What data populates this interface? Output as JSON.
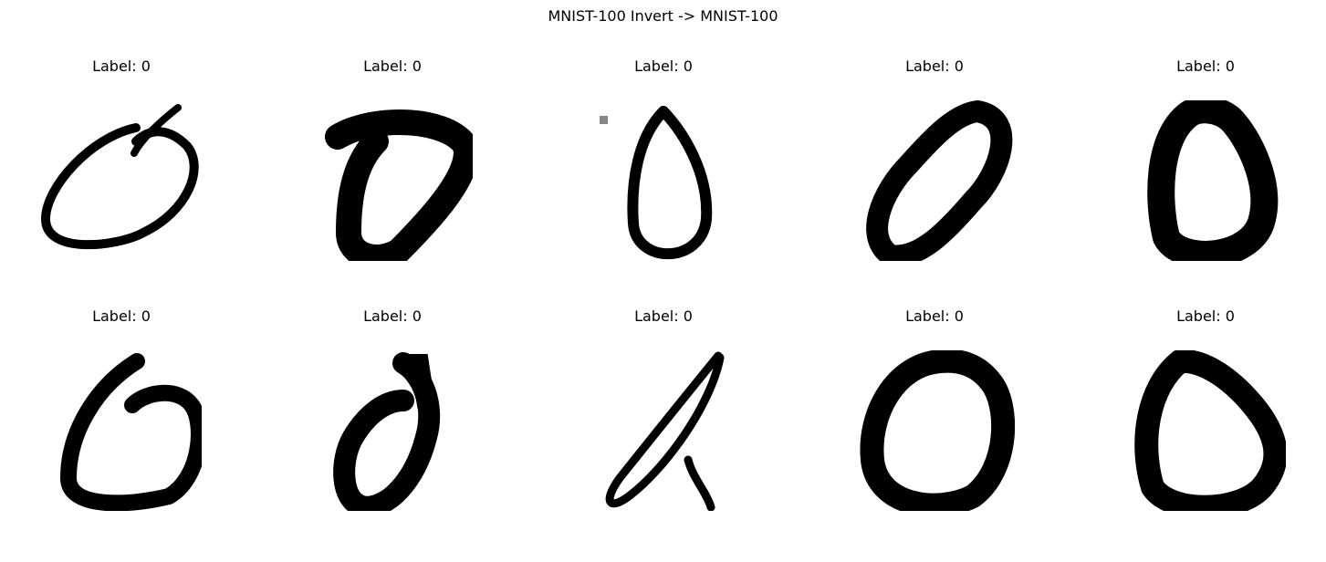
{
  "figure": {
    "title": "MNIST-100 Invert -> MNIST-100"
  },
  "panels": [
    {
      "label": "Label: 0"
    },
    {
      "label": "Label: 0"
    },
    {
      "label": "Label: 0"
    },
    {
      "label": "Label: 0"
    },
    {
      "label": "Label: 0"
    },
    {
      "label": "Label: 0"
    },
    {
      "label": "Label: 0"
    },
    {
      "label": "Label: 0"
    },
    {
      "label": "Label: 0"
    },
    {
      "label": "Label: 0"
    }
  ]
}
